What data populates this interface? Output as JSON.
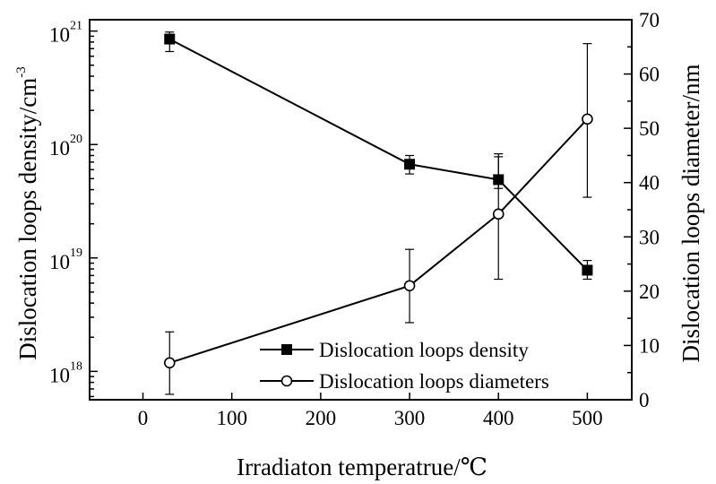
{
  "chart_data": {
    "type": "line",
    "xlabel": "Irradiaton temperatrue/℃",
    "ylabel_left_base": "Dislocation loops density/cm",
    "ylabel_left_sup": "-3",
    "ylabel_right": "Dislocation loops diameter/nm",
    "xlim": [
      -60,
      550
    ],
    "xticks": [
      0,
      100,
      200,
      300,
      400,
      500
    ],
    "ylim_left_log10": [
      17.75,
      21.1
    ],
    "yticks_left": [
      {
        "exp": 18,
        "base": "10",
        "sup": "18"
      },
      {
        "exp": 19,
        "base": "10",
        "sup": "19"
      },
      {
        "exp": 20,
        "base": "10",
        "sup": "20"
      },
      {
        "exp": 21,
        "base": "10",
        "sup": "21"
      }
    ],
    "ylim_right": [
      0,
      70
    ],
    "yticks_right": [
      0,
      10,
      20,
      30,
      40,
      50,
      60,
      70
    ],
    "legend_position": "lower-right",
    "series": [
      {
        "name": "Dislocation loops density",
        "marker": "filled-square",
        "axis": "left",
        "x": [
          30,
          300,
          400,
          500
        ],
        "y": [
          8.5e+20,
          6.7e+19,
          4.9e+19,
          7.8e+18
        ],
        "y_err_low": [
          6.6e+20,
          5.5e+19,
          4.1e+19,
          6.5e+18
        ],
        "y_err_high": [
          9.8e+20,
          8e+19,
          7.8e+19,
          9.5e+18
        ]
      },
      {
        "name": "Dislocation loops diameters",
        "marker": "open-circle",
        "axis": "right",
        "x": [
          30,
          300,
          400,
          500
        ],
        "y": [
          6.8,
          21,
          34.2,
          51.7
        ],
        "y_err_low": [
          1,
          14.2,
          22.2,
          37.3
        ],
        "y_err_high": [
          12.5,
          27.7,
          45.3,
          65.6
        ]
      }
    ]
  }
}
